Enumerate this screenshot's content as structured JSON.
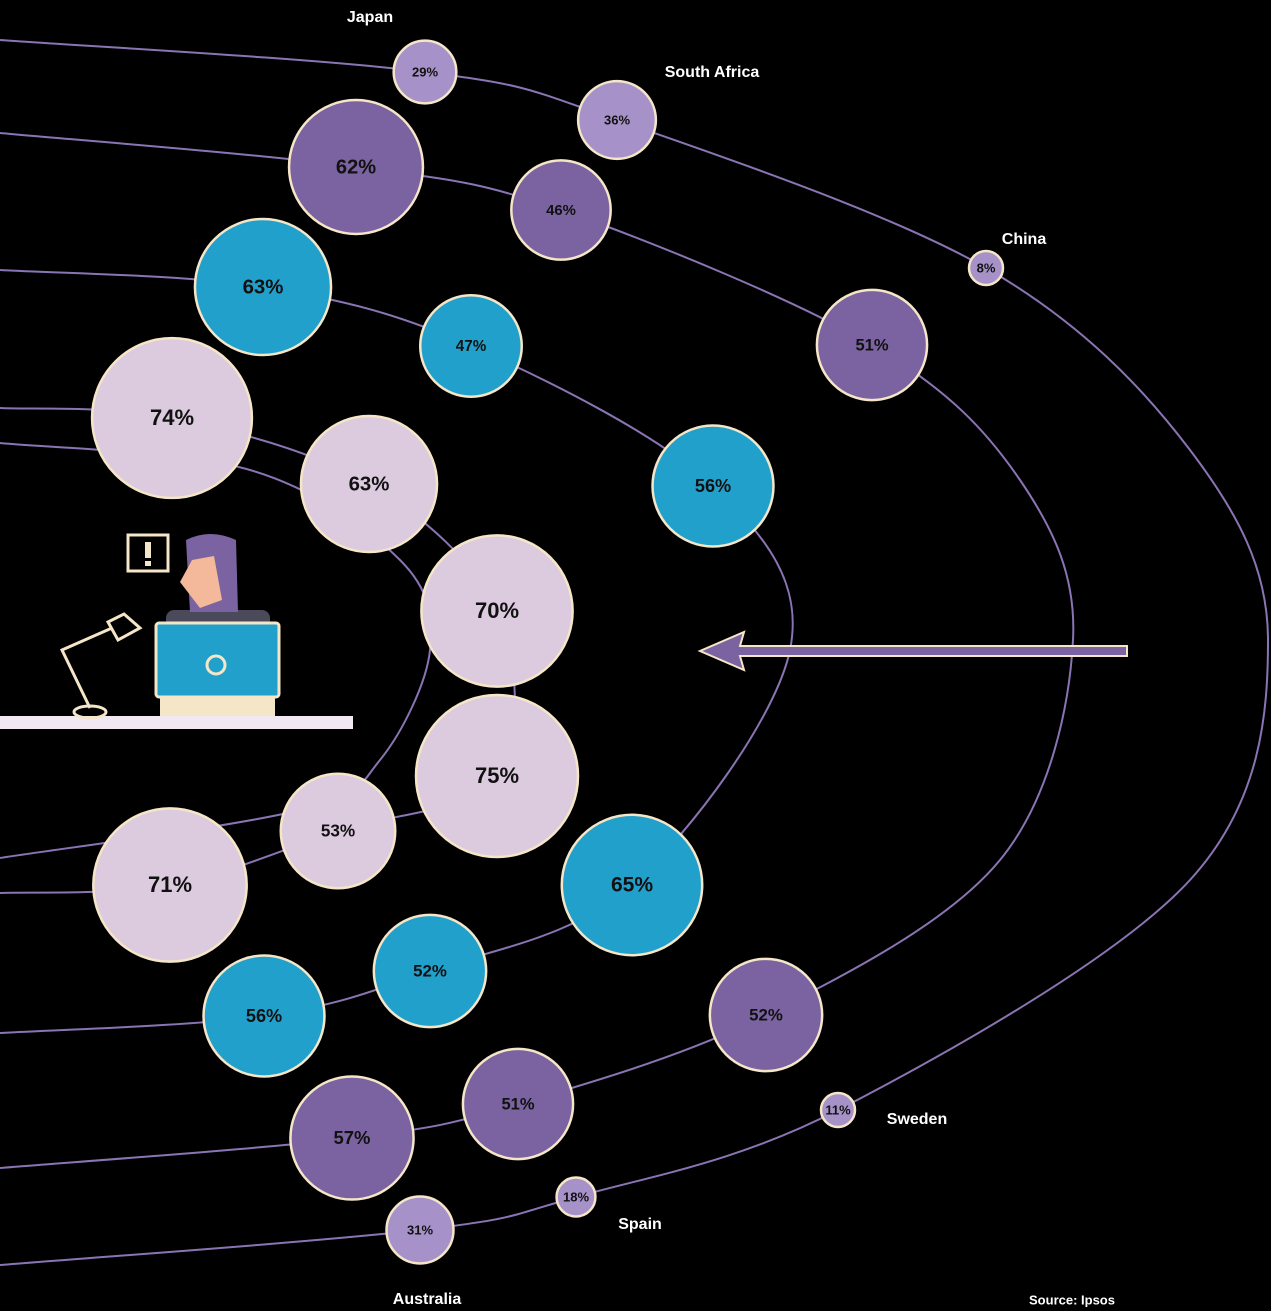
{
  "chart_data": {
    "type": "bubble",
    "series": [
      {
        "color": "#a692c8",
        "categories": [
          "Japan",
          "South Africa",
          "China",
          "Sweden",
          "Spain",
          "Australia"
        ],
        "values": [
          29,
          36,
          8,
          11,
          18,
          31
        ],
        "value_labels": [
          "29%",
          "36%",
          "8%",
          "11%",
          "18%",
          "31%"
        ]
      },
      {
        "color": "#7a63a0",
        "values": [
          62,
          46,
          51,
          52,
          51,
          57
        ],
        "value_labels": [
          "62%",
          "46%",
          "51%",
          "52%",
          "51%",
          "57%"
        ]
      },
      {
        "color": "#22a0cc",
        "values": [
          63,
          47,
          56,
          65,
          52,
          56
        ],
        "value_labels": [
          "63%",
          "47%",
          "56%",
          "65%",
          "52%",
          "56%"
        ]
      },
      {
        "color": "#dccadf",
        "values": [
          74,
          63,
          70,
          75,
          53,
          71
        ],
        "value_labels": [
          "74%",
          "63%",
          "70%",
          "75%",
          "53%",
          "71%"
        ]
      }
    ],
    "source": "Source: Ipsos"
  }
}
